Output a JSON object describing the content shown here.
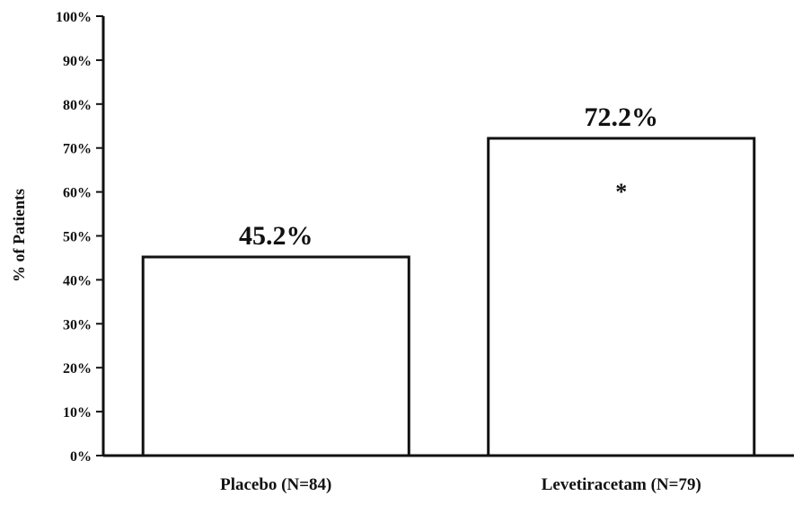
{
  "chart_data": {
    "type": "bar",
    "title": "",
    "xlabel": "",
    "ylabel": "% of Patients",
    "ylim": [
      0,
      100
    ],
    "yticks": [
      "0%",
      "10%",
      "20%",
      "30%",
      "40%",
      "50%",
      "60%",
      "70%",
      "80%",
      "90%",
      "100%"
    ],
    "categories": [
      "Placebo (N=84)",
      "Levetiracetam (N=79)"
    ],
    "values": [
      45.2,
      72.2
    ],
    "data_labels": [
      "45.2%",
      "72.2%"
    ],
    "annotations": [
      {
        "category": "Levetiracetam (N=79)",
        "text": "*"
      }
    ],
    "grid": false,
    "legend": "none",
    "bar_fill": "#ffffff",
    "bar_stroke": "#111111"
  }
}
